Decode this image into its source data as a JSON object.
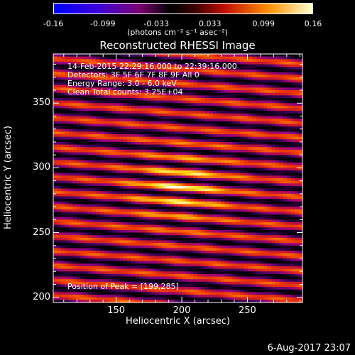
{
  "colorbar": {
    "ticks": [
      "-0.16",
      "-0.099",
      "-0.033",
      "0.033",
      "0.099",
      "0.16"
    ],
    "tick_values": [
      -0.16,
      -0.099,
      -0.033,
      0.033,
      0.099,
      0.16
    ],
    "units_label": "(photons cm⁻² s⁻¹ asec⁻²)"
  },
  "chart_data": {
    "type": "heatmap",
    "title": "Reconstructed RHESSI Image",
    "xlabel": "Heliocentric X (arcsec)",
    "ylabel": "Heliocentric Y (arcsec)",
    "xlim": [
      102,
      292
    ],
    "ylim": [
      196,
      388
    ],
    "x_ticks": [
      "150",
      "200",
      "250"
    ],
    "x_tick_values": [
      150,
      200,
      250
    ],
    "y_ticks": [
      "200",
      "250",
      "300",
      "350"
    ],
    "y_tick_values": [
      200,
      250,
      300,
      350
    ],
    "colormap": "hot-rainbow",
    "value_range": [
      -0.16,
      0.16
    ],
    "peak_position": [
      199,
      285
    ],
    "annotations": [
      "14-Feb-2015 22:29:16.000 to 22:39:16.000",
      "Detectors: 3F 5F 6F 7F 8F 9F All 0",
      "Energy Range: 3.0 - 6.0 keV",
      "Clean      Total counts: 3.25E+04",
      "Position of Peak = [199,285]"
    ]
  },
  "footer": {
    "timestamp": "6-Aug-2017 23:07"
  }
}
